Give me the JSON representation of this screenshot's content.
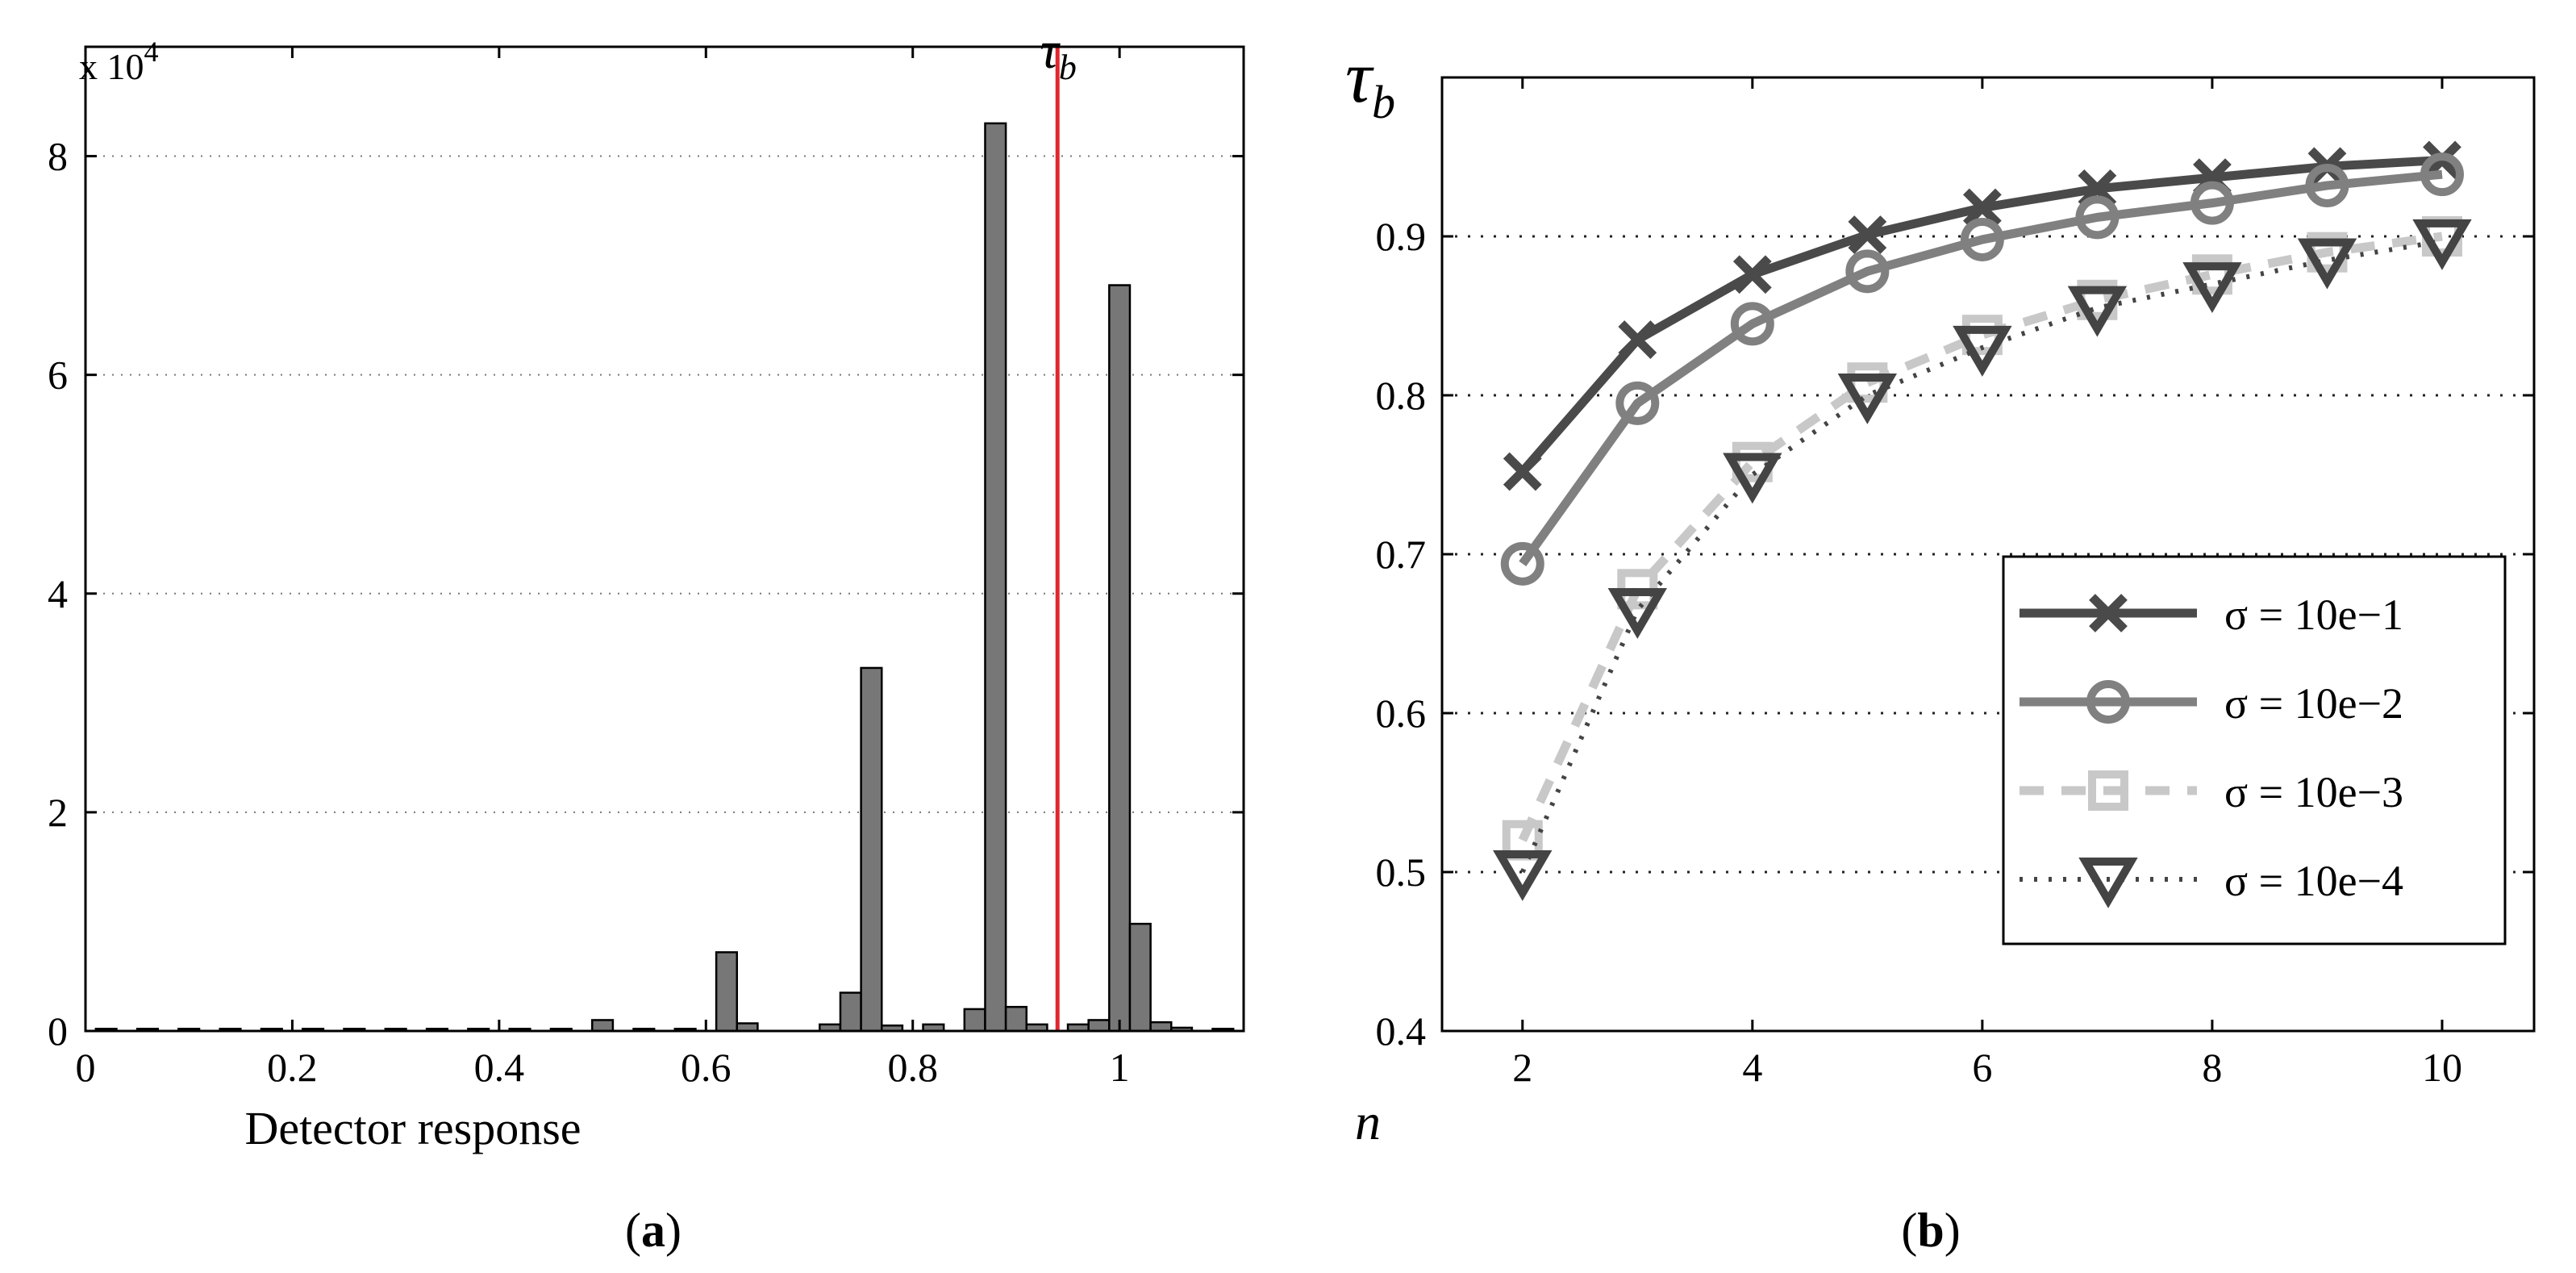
{
  "chart_data": [
    {
      "panel": "(a)",
      "panel_letter": "a",
      "type": "bar",
      "subtype": "histogram",
      "xlabel": "Detector response",
      "ylabel": "",
      "y_multiplier_label": "x 10",
      "y_multiplier_exp": "4",
      "xlim": [
        0,
        1.12
      ],
      "ylim": [
        0,
        9
      ],
      "xticks": [
        0,
        0.2,
        0.4,
        0.6,
        0.8,
        1
      ],
      "xtick_labels": [
        "0",
        "0.2",
        "0.4",
        "0.6",
        "0.8",
        "1"
      ],
      "yticks": [
        0,
        2,
        4,
        6,
        8
      ],
      "ytick_labels": [
        "0",
        "2",
        "4",
        "6",
        "8"
      ],
      "grid": "horizontal dotted",
      "bin_width": 0.02,
      "bin_centers": [
        0.02,
        0.06,
        0.1,
        0.14,
        0.18,
        0.22,
        0.26,
        0.3,
        0.34,
        0.38,
        0.42,
        0.46,
        0.5,
        0.54,
        0.58,
        0.62,
        0.64,
        0.72,
        0.74,
        0.76,
        0.78,
        0.82,
        0.86,
        0.88,
        0.9,
        0.92,
        0.96,
        0.98,
        1.0,
        1.02,
        1.04,
        1.06,
        1.1
      ],
      "values": [
        0.02,
        0.02,
        0.02,
        0.02,
        0.02,
        0.02,
        0.02,
        0.02,
        0.02,
        0.02,
        0.02,
        0.02,
        0.1,
        0.02,
        0.02,
        0.72,
        0.07,
        0.06,
        0.35,
        3.32,
        0.05,
        0.06,
        0.2,
        8.3,
        0.22,
        0.06,
        0.06,
        0.1,
        6.82,
        0.98,
        0.08,
        0.03,
        0.02
      ],
      "bar_color": "#777777",
      "threshold": {
        "x": 0.94,
        "label": "τ",
        "label_sub": "b",
        "color": "#e0262e"
      }
    },
    {
      "panel": "(b)",
      "panel_letter": "b",
      "type": "line",
      "xlabel": "n",
      "ylabel": "τ",
      "ylabel_sub": "b",
      "xlim": [
        1.3,
        10.8
      ],
      "ylim": [
        0.4,
        1.0
      ],
      "xticks": [
        2,
        4,
        6,
        8,
        10
      ],
      "xtick_labels": [
        "2",
        "4",
        "6",
        "8",
        "10"
      ],
      "yticks": [
        0.4,
        0.5,
        0.6,
        0.7,
        0.8,
        0.9
      ],
      "ytick_labels": [
        "0.4",
        "0.5",
        "0.6",
        "0.7",
        "0.8",
        "0.9"
      ],
      "grid": "horizontal dotted",
      "legend_position": "bottom-right",
      "x": [
        2,
        3,
        4,
        5,
        6,
        7,
        8,
        9,
        10
      ],
      "series": [
        {
          "name": "σ = 10e−1",
          "values": [
            0.752,
            0.835,
            0.876,
            0.901,
            0.918,
            0.93,
            0.937,
            0.944,
            0.948
          ],
          "color": "#4a4a4a",
          "style": "solid",
          "marker": "x"
        },
        {
          "name": "σ = 10e−2",
          "values": [
            0.694,
            0.795,
            0.845,
            0.878,
            0.898,
            0.912,
            0.921,
            0.932,
            0.939
          ],
          "color": "#808080",
          "style": "solid",
          "marker": "o"
        },
        {
          "name": "σ = 10e−3",
          "values": [
            0.52,
            0.678,
            0.758,
            0.808,
            0.838,
            0.86,
            0.876,
            0.89,
            0.9
          ],
          "color": "#c8c8c8",
          "style": "dashed",
          "marker": "s"
        },
        {
          "name": "σ = 10e−4",
          "values": [
            0.5,
            0.665,
            0.75,
            0.8,
            0.83,
            0.855,
            0.87,
            0.885,
            0.897
          ],
          "color": "#444444",
          "style": "dotted",
          "marker": "v"
        }
      ]
    }
  ]
}
